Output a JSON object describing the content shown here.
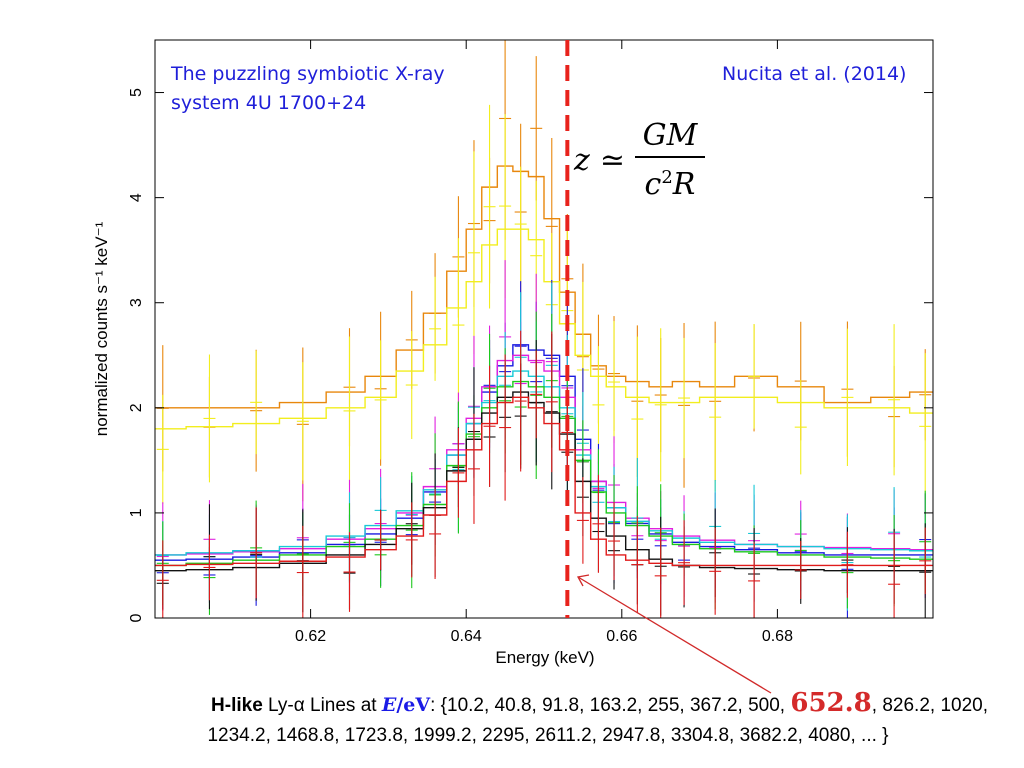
{
  "colors": {
    "annotation": "#1f1fd9",
    "dashed_line": "#e8221c",
    "arrow": "#d12a2a",
    "highlight": "#d42a2a",
    "variable": "#1a1ae6"
  },
  "annotations": {
    "left_line1": "The puzzling symbiotic X-ray",
    "left_line2": "system 4U 1700+24",
    "right": "Nucita et al. (2014)"
  },
  "formula": {
    "lhs": "z",
    "relation": "≃",
    "numerator": "GM",
    "denominator_base": "c",
    "denominator_exp": "2",
    "denominator_tail": "R"
  },
  "caption": {
    "bold_part": "H-like",
    "line_part": " Ly-α Lines at ",
    "var": "E",
    "slash": "/",
    "unit": "eV",
    "colon": ": ",
    "values_before": "{10.2, 40.8, 91.8, 163.2, 255, 367.2, 500, ",
    "highlight": "652.8",
    "values_after": ", 826.2, 1020,",
    "line3": "1234.2, 1468.8, 1723.8, 1999.2, 2295, 2611.2, 2947.8, 3304.8, 3682.2, 4080, ... }"
  },
  "chart_data": {
    "type": "line",
    "xlabel": "Energy (keV)",
    "ylabel": "normalized counts s⁻¹ keV⁻¹",
    "xlim": [
      0.6,
      0.7
    ],
    "ylim": [
      0,
      5.5
    ],
    "xticks": [
      0.62,
      0.64,
      0.66,
      0.68
    ],
    "xtick_labels": [
      "0.62",
      "0.64",
      "0.66",
      "0.68"
    ],
    "yticks": [
      0,
      1,
      2,
      3,
      4,
      5
    ],
    "ytick_labels": [
      "0",
      "1",
      "2",
      "3",
      "4",
      "5"
    ],
    "grid": false,
    "marker_line_x": 0.653,
    "x": [
      0.601,
      0.607,
      0.613,
      0.619,
      0.625,
      0.629,
      0.633,
      0.636,
      0.639,
      0.641,
      0.643,
      0.645,
      0.647,
      0.649,
      0.651,
      0.653,
      0.655,
      0.657,
      0.659,
      0.662,
      0.665,
      0.668,
      0.672,
      0.677,
      0.683,
      0.689,
      0.695,
      0.699
    ],
    "series": [
      {
        "color": "#e8870c",
        "values": [
          2.0,
          2.0,
          2.0,
          2.05,
          2.15,
          2.3,
          2.55,
          2.9,
          3.3,
          3.7,
          4.1,
          4.3,
          4.25,
          4.2,
          3.8,
          3.1,
          2.7,
          2.4,
          2.3,
          2.25,
          2.2,
          2.25,
          2.2,
          2.3,
          2.2,
          2.05,
          2.1,
          2.15
        ]
      },
      {
        "color": "#f2ee1e",
        "values": [
          1.8,
          1.82,
          1.85,
          1.9,
          2.0,
          2.1,
          2.35,
          2.6,
          2.95,
          3.2,
          3.55,
          3.7,
          3.7,
          3.6,
          3.2,
          2.8,
          2.5,
          2.3,
          2.2,
          2.1,
          2.05,
          2.05,
          2.1,
          2.1,
          2.05,
          2.0,
          2.0,
          1.95
        ]
      },
      {
        "color": "#1a1ae0",
        "values": [
          0.55,
          0.56,
          0.58,
          0.62,
          0.7,
          0.8,
          0.95,
          1.2,
          1.55,
          1.85,
          2.15,
          2.4,
          2.6,
          2.55,
          2.5,
          2.3,
          1.7,
          1.3,
          1.05,
          0.9,
          0.8,
          0.72,
          0.68,
          0.65,
          0.62,
          0.6,
          0.6,
          0.6
        ]
      },
      {
        "color": "#e020e0",
        "values": [
          0.6,
          0.61,
          0.63,
          0.66,
          0.75,
          0.85,
          1.0,
          1.25,
          1.6,
          1.9,
          2.2,
          2.45,
          2.5,
          2.45,
          2.35,
          2.1,
          1.6,
          1.3,
          1.1,
          0.95,
          0.85,
          0.78,
          0.74,
          0.7,
          0.68,
          0.67,
          0.66,
          0.65
        ]
      },
      {
        "color": "#18c9d6",
        "values": [
          0.6,
          0.62,
          0.64,
          0.68,
          0.78,
          0.88,
          1.02,
          1.22,
          1.55,
          1.85,
          2.05,
          2.3,
          2.35,
          2.3,
          2.2,
          2.0,
          1.55,
          1.25,
          1.05,
          0.92,
          0.83,
          0.76,
          0.72,
          0.7,
          0.68,
          0.66,
          0.65,
          0.64
        ]
      },
      {
        "color": "#1dc81d",
        "values": [
          0.5,
          0.52,
          0.55,
          0.6,
          0.68,
          0.75,
          0.88,
          1.08,
          1.45,
          1.75,
          2.0,
          2.2,
          2.25,
          2.2,
          2.1,
          1.9,
          1.5,
          1.2,
          1.0,
          0.88,
          0.78,
          0.7,
          0.66,
          0.63,
          0.6,
          0.58,
          0.57,
          0.56
        ]
      },
      {
        "color": "#111111",
        "values": [
          0.45,
          0.46,
          0.48,
          0.52,
          0.6,
          0.7,
          0.85,
          1.05,
          1.4,
          1.7,
          1.95,
          2.1,
          2.15,
          2.05,
          1.95,
          1.75,
          1.3,
          0.95,
          0.78,
          0.65,
          0.56,
          0.5,
          0.48,
          0.47,
          0.46,
          0.45,
          0.45,
          0.45
        ]
      },
      {
        "color": "#e01b1b",
        "values": [
          0.5,
          0.51,
          0.52,
          0.54,
          0.58,
          0.65,
          0.78,
          0.98,
          1.3,
          1.6,
          1.85,
          2.05,
          2.1,
          2.0,
          1.85,
          1.6,
          1.0,
          0.75,
          0.6,
          0.55,
          0.52,
          0.5,
          0.5,
          0.5,
          0.5,
          0.5,
          0.5,
          0.5
        ]
      }
    ]
  }
}
